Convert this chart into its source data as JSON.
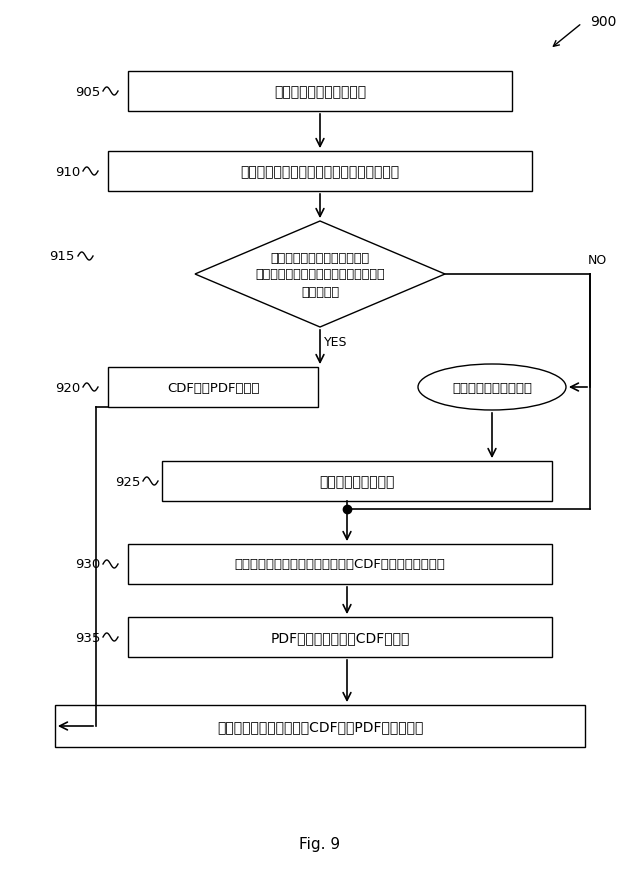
{
  "title": "Fig. 9",
  "box_905": "リアルタイム更新の予約",
  "box_910": "前兆変換を用いた、信号へのデータの変換",
  "diamond_915_line1": "確率時間従属関係の選択肢に",
  "diamond_915_line2": "対するベイジアンネットワークの訓練",
  "diamond_915_line3": "指数分布？",
  "box_920": "CDF及びPDFの算出",
  "ellipse_920": "時間スケールのリスト",
  "box_925": "イベント確率の算出",
  "box_930": "時間スケールの関数としての連綜CDFのフィッティング",
  "box_935": "PDFを得るための、CDFの微分",
  "box_final": "オンライン配備においてCDF及びPDFが利用可能",
  "yes_label": "YES",
  "no_label": "NO",
  "label_900": "900",
  "labels": [
    "905",
    "910",
    "915",
    "920",
    "925",
    "930",
    "935"
  ],
  "bg_color": "#ffffff"
}
